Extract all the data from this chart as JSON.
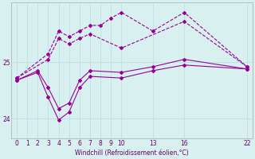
{
  "background_color": "#d8f0f0",
  "line_color": "#990099",
  "grid_color": "#b8dede",
  "xlabel": "Windchill (Refroidissement éolien,°C)",
  "xlabel_color": "#660066",
  "tick_color": "#660066",
  "xlim": [
    -0.5,
    22.5
  ],
  "ylim": [
    23.65,
    26.05
  ],
  "yticks": [
    24,
    25
  ],
  "xticks": [
    0,
    1,
    2,
    3,
    4,
    5,
    6,
    7,
    8,
    9,
    10,
    13,
    16,
    22
  ],
  "series": [
    {
      "x": [
        0,
        3,
        4,
        5,
        6,
        7,
        8,
        9,
        10,
        13,
        16,
        22
      ],
      "y": [
        24.72,
        25.15,
        25.55,
        25.45,
        25.55,
        25.65,
        25.65,
        25.78,
        25.88,
        25.55,
        25.88,
        24.92
      ],
      "linestyle": "--",
      "marker": true
    },
    {
      "x": [
        0,
        3,
        4,
        5,
        6,
        7,
        10,
        16,
        22
      ],
      "y": [
        24.72,
        25.05,
        25.42,
        25.32,
        25.42,
        25.5,
        25.25,
        25.72,
        24.92
      ],
      "linestyle": "--",
      "marker": true
    },
    {
      "x": [
        0,
        2,
        3,
        4,
        5,
        6,
        7,
        10,
        13,
        16,
        22
      ],
      "y": [
        24.68,
        24.85,
        24.55,
        24.18,
        24.28,
        24.68,
        24.85,
        24.82,
        24.92,
        25.05,
        24.88
      ],
      "linestyle": "-",
      "marker": true
    },
    {
      "x": [
        0,
        2,
        3,
        4,
        5,
        6,
        7,
        10,
        13,
        16,
        22
      ],
      "y": [
        24.68,
        24.82,
        24.38,
        23.98,
        24.12,
        24.55,
        24.75,
        24.72,
        24.85,
        24.95,
        24.88
      ],
      "linestyle": "-",
      "marker": true
    }
  ]
}
